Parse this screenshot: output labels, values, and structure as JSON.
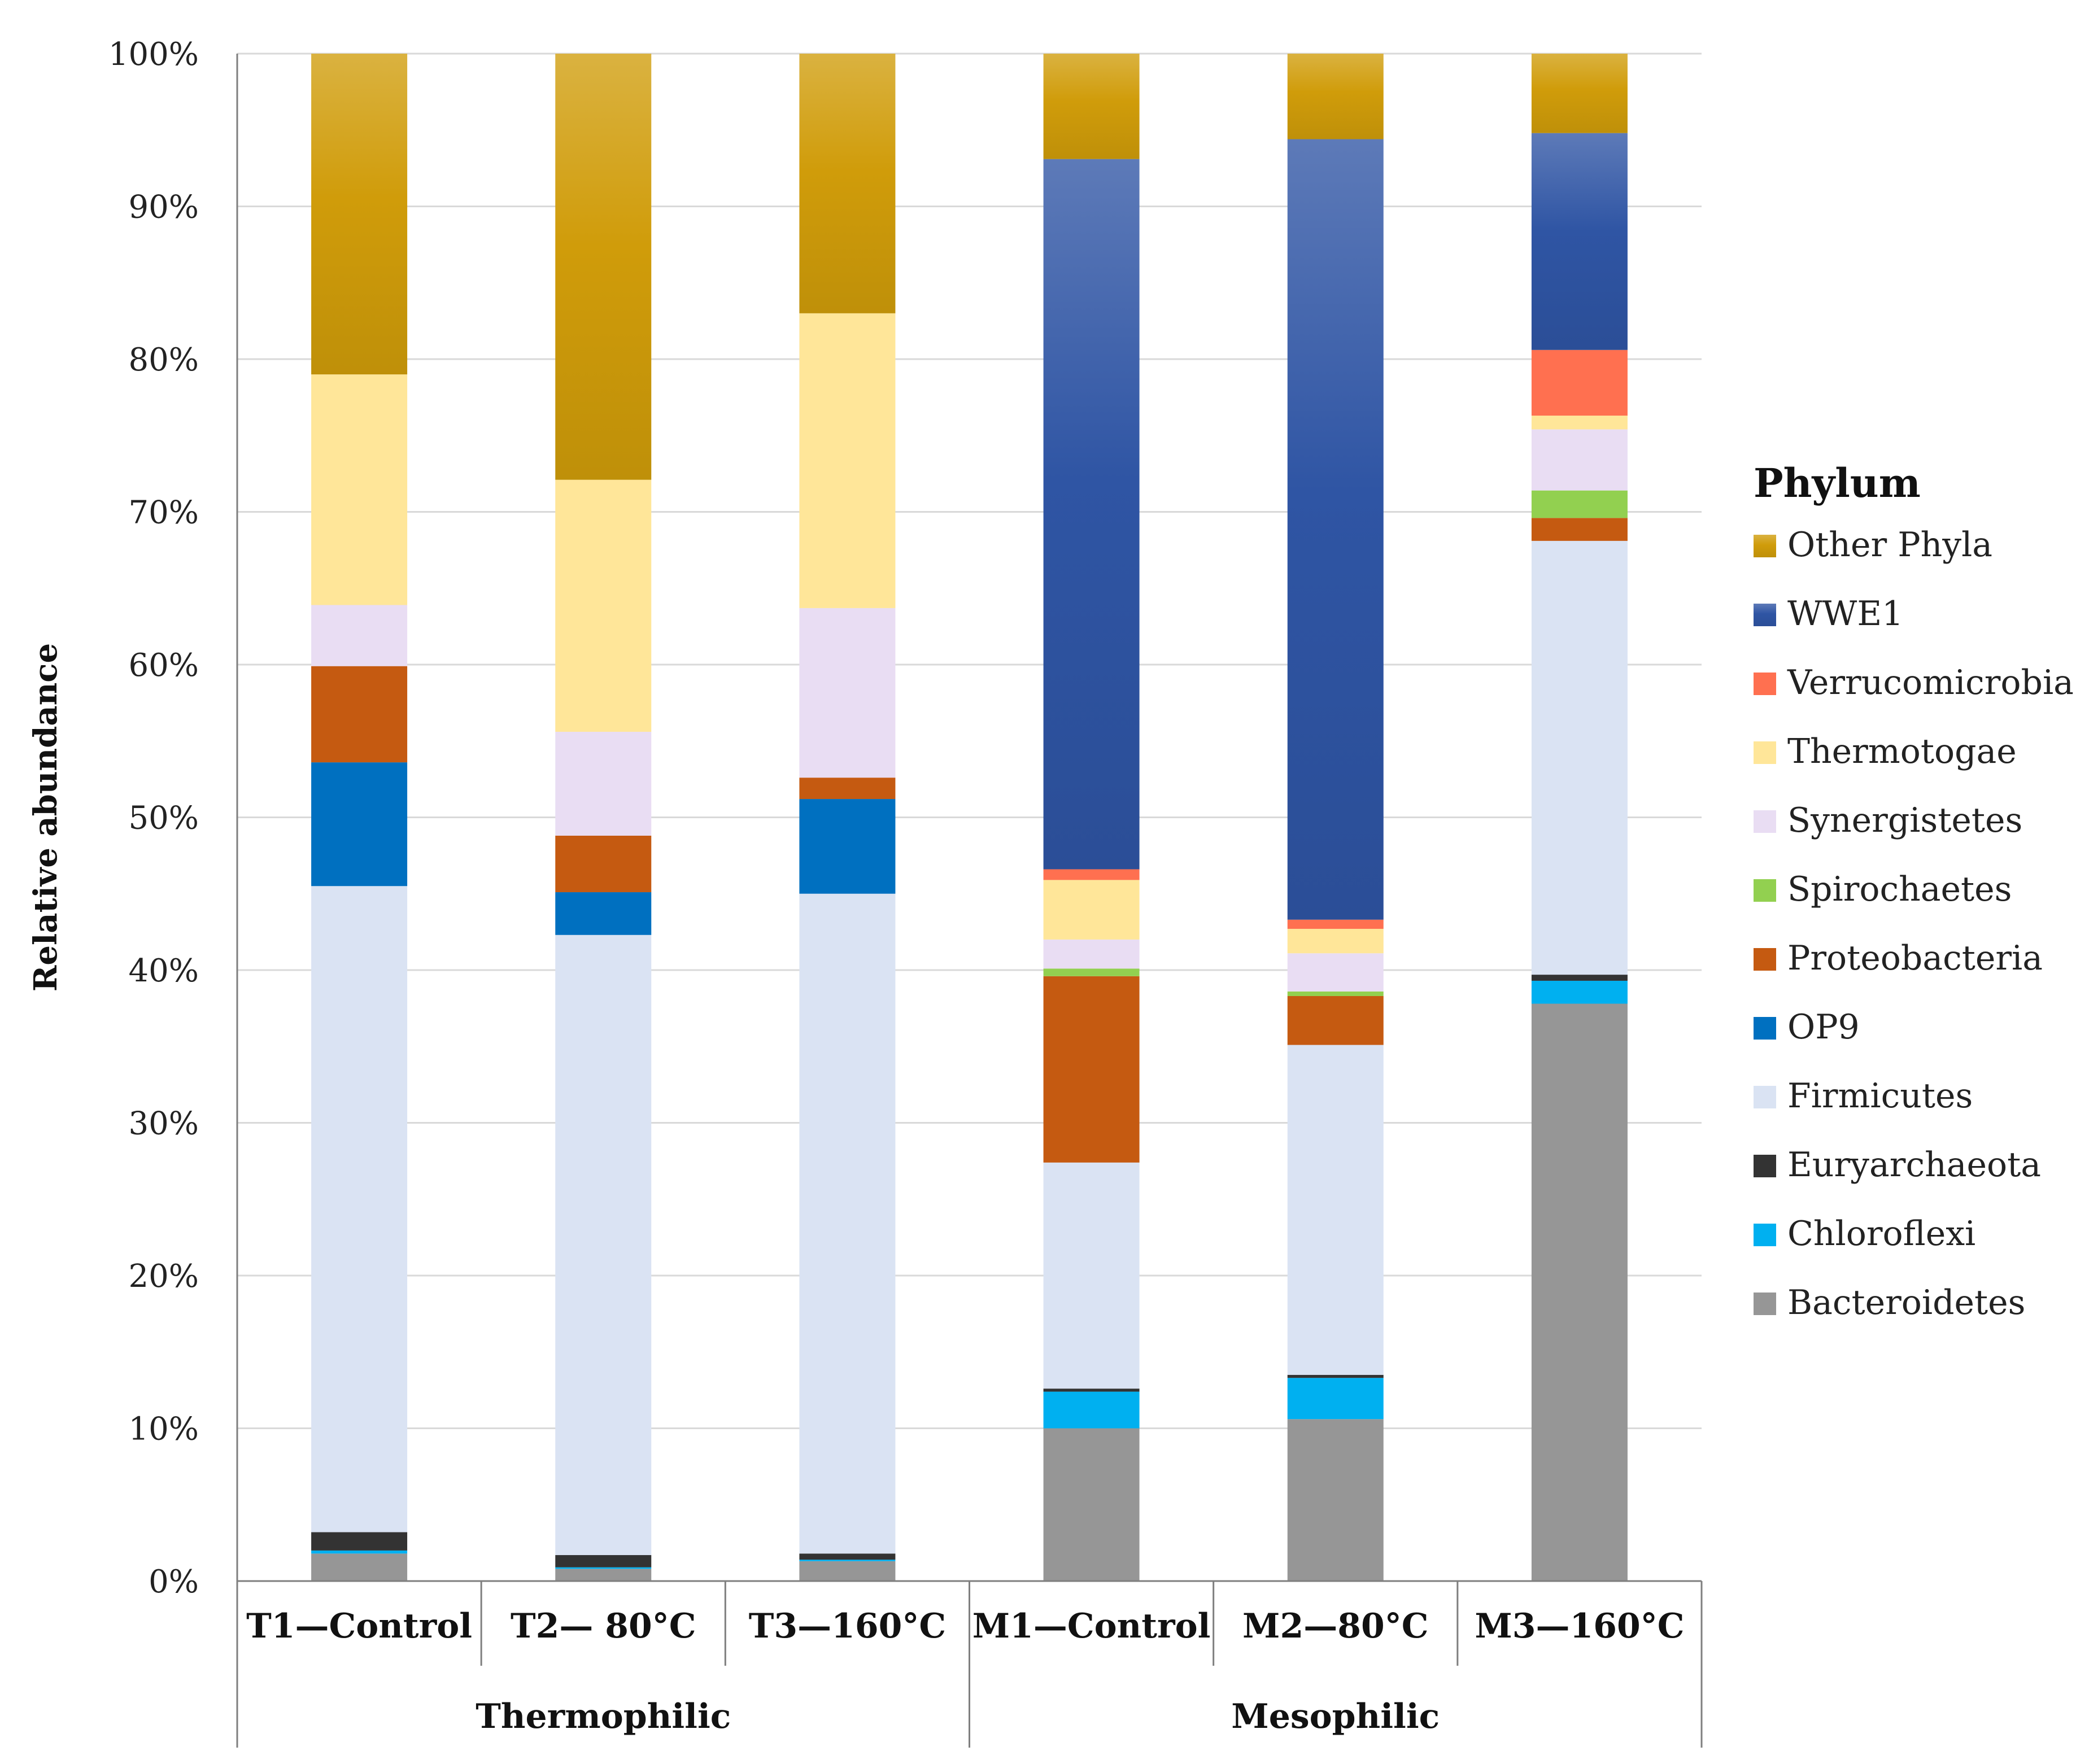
{
  "chart_data": {
    "type": "bar",
    "stacked": true,
    "percent": true,
    "title": "",
    "xlabel": "",
    "ylabel": "Relative abundance",
    "ylim": [
      0,
      100
    ],
    "y_ticks": [
      "0%",
      "10%",
      "20%",
      "30%",
      "40%",
      "50%",
      "60%",
      "70%",
      "80%",
      "90%",
      "100%"
    ],
    "grid": true,
    "legend_title": "Phylum",
    "legend_position": "right",
    "categories": [
      "T1—Control",
      "T2— 80°C",
      "T3—160°C",
      "M1—Control",
      "M2—80°C",
      "M3—160°C"
    ],
    "groups": [
      {
        "label": "Thermophilic",
        "categories": [
          0,
          1,
          2
        ]
      },
      {
        "label": "Mesophilic",
        "categories": [
          3,
          4,
          5
        ]
      }
    ],
    "series": [
      {
        "name": "Bacteroidetes",
        "color": "#969696",
        "values": [
          1.8,
          0.8,
          1.3,
          10.0,
          10.6,
          37.8
        ]
      },
      {
        "name": "Chloroflexi",
        "color": "#00B0F0",
        "values": [
          0.2,
          0.1,
          0.1,
          2.4,
          2.7,
          1.5
        ]
      },
      {
        "name": "Euryarchaeota",
        "color": "#333333",
        "values": [
          1.2,
          0.8,
          0.4,
          0.2,
          0.2,
          0.4
        ]
      },
      {
        "name": "Firmicutes",
        "color": "#DAE3F3",
        "values": [
          42.3,
          40.6,
          43.2,
          14.8,
          21.6,
          28.4
        ]
      },
      {
        "name": "OP9",
        "color": "#0070C0",
        "values": [
          8.1,
          2.8,
          6.2,
          0.0,
          0.0,
          0.0
        ]
      },
      {
        "name": "Proteobacteria",
        "color": "#C55A11",
        "values": [
          6.3,
          3.7,
          1.4,
          12.2,
          3.2,
          1.5
        ]
      },
      {
        "name": "Spirochaetes",
        "color": "#92D050",
        "values": [
          0.0,
          0.0,
          0.0,
          0.5,
          0.3,
          1.8
        ]
      },
      {
        "name": "Synergistetes",
        "color": "#E9DDF3",
        "values": [
          4.0,
          6.8,
          11.1,
          1.9,
          2.5,
          4.0
        ]
      },
      {
        "name": "Thermotogae",
        "color": "#FFE699",
        "values": [
          15.1,
          16.5,
          19.3,
          3.9,
          1.6,
          0.9
        ]
      },
      {
        "name": "Verrucomicrobia",
        "color": "#FF7050",
        "values": [
          0.0,
          0.0,
          0.0,
          0.7,
          0.6,
          4.3
        ]
      },
      {
        "name": "WWE1",
        "color": "#2F55A4",
        "values": [
          0.0,
          0.0,
          0.0,
          46.5,
          51.1,
          14.2
        ]
      },
      {
        "name": "Other Phyla",
        "color": "#D09C0A",
        "values": [
          21.0,
          27.9,
          17.0,
          6.9,
          5.6,
          5.2
        ]
      }
    ],
    "legend_order": [
      "Other Phyla",
      "WWE1",
      "Verrucomicrobia",
      "Thermotogae",
      "Synergistetes",
      "Spirochaetes",
      "Proteobacteria",
      "OP9",
      "Firmicutes",
      "Euryarchaeota",
      "Chloroflexi",
      "Bacteroidetes"
    ]
  }
}
